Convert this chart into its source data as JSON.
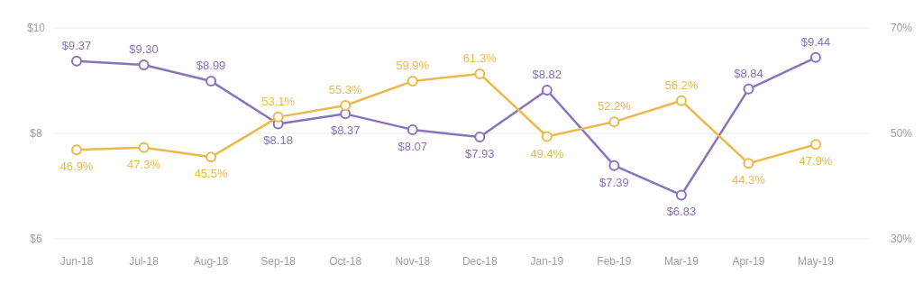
{
  "chart_data": {
    "type": "line",
    "categories": [
      "Jun-18",
      "Jul-18",
      "Aug-18",
      "Sep-18",
      "Oct-18",
      "Nov-18",
      "Dec-18",
      "Jan-19",
      "Feb-19",
      "Mar-19",
      "Apr-19",
      "May-19"
    ],
    "series": [
      {
        "color": "#8b72be",
        "values": [
          9.37,
          9.3,
          8.99,
          8.18,
          8.37,
          8.07,
          7.93,
          8.82,
          7.39,
          6.83,
          8.84,
          9.44
        ],
        "value_labels": [
          "$9.37",
          "$9.30",
          "$8.99",
          "$8.18",
          "$8.37",
          "$8.07",
          "$7.93",
          "$8.82",
          "$7.39",
          "$6.83",
          "$8.84",
          "$9.44"
        ]
      },
      {
        "color": "#ecb84a",
        "axis": "y2",
        "values": [
          46.9,
          47.3,
          45.5,
          53.1,
          55.3,
          59.9,
          61.3,
          49.4,
          52.2,
          56.2,
          44.3,
          47.9
        ],
        "value_labels": [
          "46.9%",
          "47.3%",
          "45.5%",
          "53.1%",
          "55.3%",
          "59.9%",
          "61.3%",
          "49.4%",
          "52.2%",
          "56.2%",
          "44.3%",
          "47.9%"
        ]
      }
    ],
    "ylim": [
      6,
      10
    ],
    "yticks": [
      {
        "value": 6,
        "label": "$6"
      },
      {
        "value": 8,
        "label": "$8"
      },
      {
        "value": 10,
        "label": "$10"
      }
    ],
    "y2lim": [
      30,
      70
    ],
    "y2ticks": [
      {
        "value": 30,
        "label": "30%"
      },
      {
        "value": 50,
        "label": "50%"
      },
      {
        "value": 70,
        "label": "70%"
      }
    ],
    "grid": "y",
    "marker": "circle",
    "line_style": "solid"
  }
}
